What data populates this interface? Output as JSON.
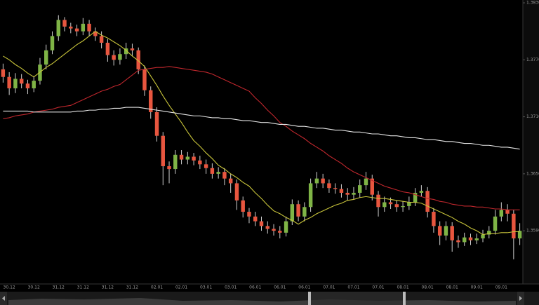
{
  "chart_data": {
    "type": "candlestick",
    "categories": [
      null,
      "30.12",
      null,
      null,
      null,
      "30.12",
      null,
      null,
      null,
      "31.12",
      null,
      null,
      null,
      "31.12",
      null,
      null,
      null,
      "31.12",
      null,
      null,
      null,
      "31.12",
      null,
      null,
      null,
      "02.01",
      null,
      null,
      null,
      "02.01",
      null,
      null,
      null,
      "03.01",
      null,
      null,
      null,
      "03.01",
      null,
      null,
      null,
      "06.01",
      null,
      null,
      null,
      "06.01",
      null,
      null,
      null,
      "06.01",
      null,
      null,
      null,
      "07.01",
      null,
      null,
      null,
      "07.01",
      null,
      null,
      null,
      "07.01",
      null,
      null,
      null,
      "08.01",
      null,
      null,
      null,
      "08.01",
      null,
      null,
      null,
      "08.01",
      null,
      null,
      null,
      "09.01",
      null,
      null,
      null,
      "09.01",
      null,
      null,
      null
    ],
    "open": [
      1.376,
      1.3752,
      1.374,
      1.375,
      1.3745,
      1.374,
      1.3748,
      1.3765,
      1.378,
      1.3795,
      1.3812,
      1.3805,
      1.3803,
      1.38,
      1.3808,
      1.38,
      1.3795,
      1.3788,
      1.3775,
      1.377,
      1.3776,
      1.3782,
      1.378,
      1.376,
      1.3738,
      1.3715,
      1.369,
      1.3658,
      1.3655,
      1.367,
      1.3665,
      1.3668,
      1.3664,
      1.366,
      1.3656,
      1.365,
      1.3652,
      1.3645,
      1.364,
      1.3622,
      1.361,
      1.3605,
      1.36,
      1.3595,
      1.3592,
      1.359,
      1.3588,
      1.36,
      1.3618,
      1.3605,
      1.3615,
      1.364,
      1.3645,
      1.364,
      1.3635,
      1.3634,
      1.363,
      1.3628,
      1.363,
      1.3638,
      1.3645,
      1.3628,
      1.3615,
      1.362,
      1.3618,
      1.3615,
      1.3616,
      1.362,
      1.363,
      1.3632,
      1.361,
      1.3595,
      1.3585,
      1.3595,
      1.358,
      1.3578,
      1.3583,
      1.358,
      1.3582,
      1.3586,
      1.359,
      1.3605,
      1.3612,
      1.3608,
      1.3582
    ],
    "high": [
      1.3766,
      1.3757,
      1.3756,
      1.3755,
      1.3749,
      1.3753,
      1.3772,
      1.3786,
      1.38,
      1.3817,
      1.3815,
      1.3809,
      1.3807,
      1.3814,
      1.3812,
      1.3804,
      1.38,
      1.3792,
      1.378,
      1.3782,
      1.3788,
      1.3787,
      1.3783,
      1.3764,
      1.3742,
      1.372,
      1.3694,
      1.3663,
      1.3675,
      1.3675,
      1.3673,
      1.3672,
      1.3669,
      1.3665,
      1.3661,
      1.3657,
      1.3656,
      1.365,
      1.3644,
      1.3626,
      1.3614,
      1.361,
      1.3605,
      1.36,
      1.3597,
      1.3595,
      1.3605,
      1.3623,
      1.3622,
      1.362,
      1.3645,
      1.3652,
      1.365,
      1.3644,
      1.364,
      1.3639,
      1.3635,
      1.3636,
      1.3644,
      1.3652,
      1.3649,
      1.3632,
      1.3626,
      1.3625,
      1.3622,
      1.3621,
      1.3626,
      1.3635,
      1.3638,
      1.3636,
      1.3614,
      1.36,
      1.36,
      1.3599,
      1.3585,
      1.3588,
      1.3587,
      1.3587,
      1.3591,
      1.3595,
      1.3612,
      1.362,
      1.3618,
      1.3612,
      1.3598
    ],
    "low": [
      1.3746,
      1.3733,
      1.3735,
      1.374,
      1.3734,
      1.3736,
      1.3744,
      1.376,
      1.3776,
      1.379,
      1.38,
      1.3798,
      1.3795,
      1.3796,
      1.3795,
      1.379,
      1.3782,
      1.3768,
      1.3764,
      1.3765,
      1.3771,
      1.3774,
      1.3755,
      1.3732,
      1.3708,
      1.3684,
      1.3638,
      1.364,
      1.365,
      1.366,
      1.366,
      1.3659,
      1.3655,
      1.365,
      1.3645,
      1.3645,
      1.3638,
      1.363,
      1.3612,
      1.3604,
      1.3598,
      1.3595,
      1.359,
      1.3587,
      1.3585,
      1.3582,
      1.3584,
      1.3596,
      1.36,
      1.36,
      1.361,
      1.3635,
      1.3635,
      1.363,
      1.3629,
      1.3625,
      1.3622,
      1.3623,
      1.3625,
      1.3633,
      1.3622,
      1.3605,
      1.361,
      1.3613,
      1.361,
      1.361,
      1.3612,
      1.3616,
      1.3626,
      1.3604,
      1.3588,
      1.3575,
      1.358,
      1.3568,
      1.3572,
      1.3574,
      1.3575,
      1.3576,
      1.3578,
      1.3582,
      1.3586,
      1.36,
      1.36,
      1.356,
      1.3575
    ],
    "close": [
      1.3752,
      1.374,
      1.375,
      1.3745,
      1.374,
      1.3748,
      1.3765,
      1.378,
      1.3795,
      1.3812,
      1.3805,
      1.3803,
      1.38,
      1.3808,
      1.38,
      1.3795,
      1.3788,
      1.3775,
      1.377,
      1.3776,
      1.3782,
      1.378,
      1.376,
      1.3738,
      1.3715,
      1.369,
      1.3658,
      1.3655,
      1.367,
      1.3665,
      1.3668,
      1.3664,
      1.366,
      1.3656,
      1.365,
      1.3652,
      1.3645,
      1.364,
      1.3622,
      1.361,
      1.3605,
      1.36,
      1.3595,
      1.3592,
      1.359,
      1.3588,
      1.36,
      1.3618,
      1.3605,
      1.3615,
      1.364,
      1.3645,
      1.364,
      1.3635,
      1.3634,
      1.363,
      1.3628,
      1.363,
      1.3638,
      1.3645,
      1.3628,
      1.3615,
      1.362,
      1.3618,
      1.3615,
      1.3616,
      1.362,
      1.363,
      1.3632,
      1.361,
      1.3595,
      1.3585,
      1.3595,
      1.358,
      1.3578,
      1.3583,
      1.358,
      1.3582,
      1.3586,
      1.359,
      1.3605,
      1.3612,
      1.3608,
      1.3582,
      1.359
    ],
    "up_color": "#7fb446",
    "down_color": "#e8563f",
    "wick_color": "#d0d0d0",
    "moving_averages": [
      {
        "color": "#c8c43a",
        "values": [
          1.3774,
          1.377,
          1.3765,
          1.3761,
          1.3756,
          1.3752,
          1.3757,
          1.3762,
          1.3766,
          1.3771,
          1.3776,
          1.3781,
          1.3786,
          1.379,
          1.3795,
          1.38,
          1.3796,
          1.3793,
          1.3789,
          1.3785,
          1.378,
          1.3774,
          1.3769,
          1.3763,
          1.3753,
          1.3743,
          1.3732,
          1.3722,
          1.3713,
          1.3704,
          1.3694,
          1.3685,
          1.3679,
          1.3672,
          1.3666,
          1.3659,
          1.3655,
          1.365,
          1.3646,
          1.3641,
          1.3637,
          1.363,
          1.3624,
          1.3617,
          1.3611,
          1.3608,
          1.3604,
          1.3601,
          1.3597,
          1.3601,
          1.3604,
          1.3608,
          1.3611,
          1.3614,
          1.3617,
          1.3619,
          1.3622,
          1.3623,
          1.3625,
          1.3626,
          1.3625,
          1.3624,
          1.3624,
          1.3623,
          1.3622,
          1.3621,
          1.362,
          1.362,
          1.3619,
          1.3616,
          1.3613,
          1.361,
          1.3607,
          1.3604,
          1.36,
          1.3597,
          1.3593,
          1.359,
          1.3586,
          1.3587,
          1.3587,
          1.3588,
          1.3588,
          1.3589,
          1.3589
        ]
      },
      {
        "color": "#c0272d",
        "values": [
          1.3708,
          1.3709,
          1.3711,
          1.3712,
          1.3713,
          1.3715,
          1.3716,
          1.3717,
          1.3718,
          1.372,
          1.3721,
          1.3722,
          1.3725,
          1.3728,
          1.3731,
          1.3734,
          1.3737,
          1.3739,
          1.3742,
          1.3744,
          1.3749,
          1.3754,
          1.3759,
          1.376,
          1.3761,
          1.3762,
          1.3762,
          1.3763,
          1.3762,
          1.3761,
          1.376,
          1.3759,
          1.3758,
          1.3757,
          1.3755,
          1.3752,
          1.3749,
          1.3746,
          1.3743,
          1.374,
          1.3737,
          1.373,
          1.3724,
          1.3717,
          1.3711,
          1.3704,
          1.37,
          1.3695,
          1.3691,
          1.3687,
          1.3682,
          1.3678,
          1.3674,
          1.3669,
          1.3665,
          1.3661,
          1.3656,
          1.3652,
          1.3649,
          1.3646,
          1.3643,
          1.364,
          1.3637,
          1.3635,
          1.3633,
          1.3631,
          1.363,
          1.3628,
          1.3626,
          1.3624,
          1.3623,
          1.3621,
          1.362,
          1.3618,
          1.3617,
          1.3616,
          1.3616,
          1.3615,
          1.3615,
          1.3614,
          1.3613,
          1.3613,
          1.3612,
          1.3612,
          1.3612
        ]
      },
      {
        "color": "#e6e6e6",
        "values": [
          1.3716,
          1.3716,
          1.3716,
          1.3716,
          1.3716,
          1.3715,
          1.3715,
          1.3715,
          1.3715,
          1.3715,
          1.3715,
          1.3715,
          1.3716,
          1.3716,
          1.3717,
          1.3717,
          1.3718,
          1.3718,
          1.3719,
          1.3719,
          1.372,
          1.372,
          1.372,
          1.3719,
          1.3718,
          1.3717,
          1.3716,
          1.3715,
          1.3714,
          1.3713,
          1.3712,
          1.3711,
          1.3711,
          1.371,
          1.3709,
          1.3709,
          1.3708,
          1.3708,
          1.3707,
          1.3706,
          1.3706,
          1.3705,
          1.3704,
          1.3704,
          1.3703,
          1.3702,
          1.3702,
          1.3701,
          1.37,
          1.37,
          1.3699,
          1.3698,
          1.3698,
          1.3697,
          1.3696,
          1.3696,
          1.3695,
          1.3694,
          1.3694,
          1.3693,
          1.3692,
          1.3692,
          1.3691,
          1.369,
          1.369,
          1.3689,
          1.3688,
          1.3688,
          1.3687,
          1.3686,
          1.3686,
          1.3685,
          1.3684,
          1.3684,
          1.3683,
          1.3682,
          1.3682,
          1.3681,
          1.368,
          1.368,
          1.3679,
          1.3678,
          1.3678,
          1.3677,
          1.3676
        ]
      }
    ],
    "ylim": [
      1.3534,
      1.3833
    ],
    "yticks": [
      {
        "value": 1.383,
        "label": "1.38300"
      },
      {
        "value": 1.377,
        "label": "1.37700"
      },
      {
        "value": 1.371,
        "label": "1.37100"
      },
      {
        "value": 1.365,
        "label": "1.36500"
      },
      {
        "value": 1.359,
        "label": "1.35900"
      }
    ]
  }
}
